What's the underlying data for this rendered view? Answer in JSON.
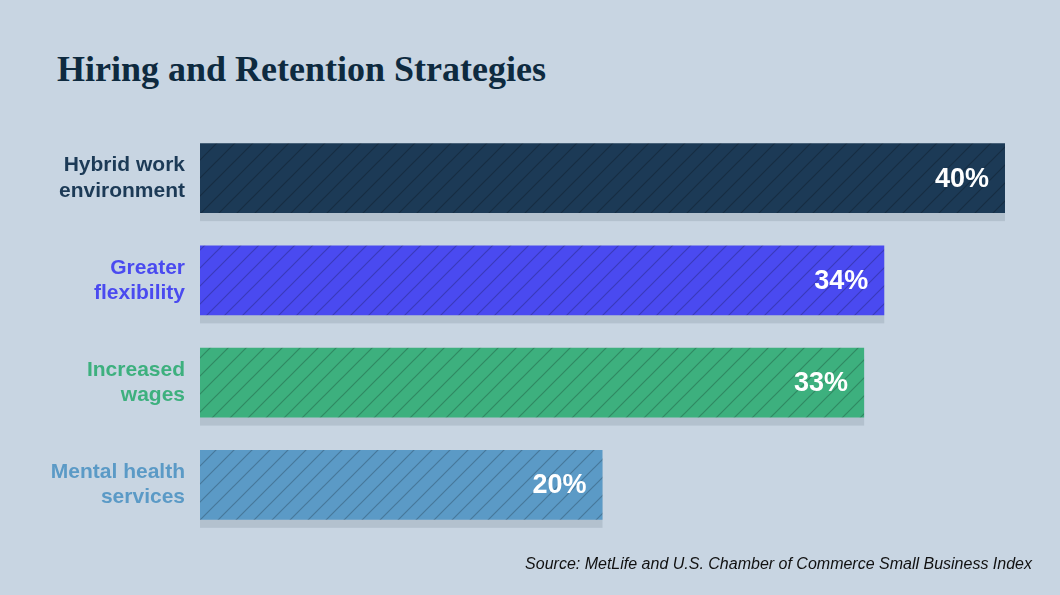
{
  "chart_data": {
    "type": "bar",
    "title": "Hiring and Retention Strategies",
    "source": "Source: MetLife and U.S. Chamber of Commerce Small Business Index",
    "categories": [
      "Hybrid work environment",
      "Greater flexibility",
      "Increased wages",
      "Mental health services"
    ],
    "values": [
      40,
      34,
      33,
      20
    ],
    "value_labels": [
      "40%",
      "34%",
      "33%",
      "20%"
    ],
    "colors": [
      "#1c3a56",
      "#4a4af0",
      "#3db07e",
      "#5b9ac6"
    ],
    "orientation": "horizontal",
    "data_labels": true,
    "xlim": [
      0,
      40
    ],
    "tick_labels": "y",
    "grid": false
  }
}
